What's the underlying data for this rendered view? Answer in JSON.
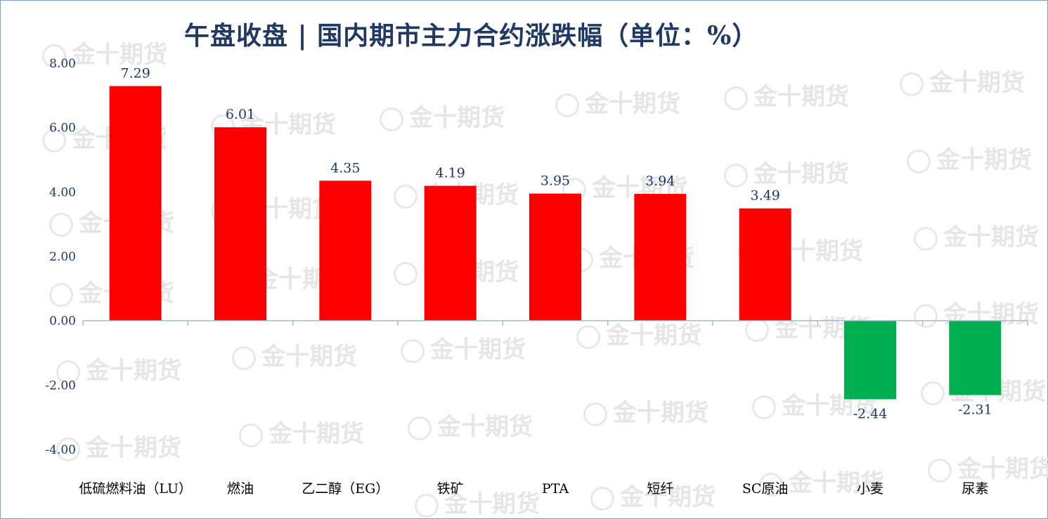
{
  "chart_data": {
    "type": "bar",
    "title": "午盘收盘 | 国内期市主力合约涨跌幅（单位：%）",
    "categories": [
      "低硫燃料油（LU）",
      "燃油",
      "乙二醇（EG）",
      "铁矿",
      "PTA",
      "短纤",
      "SC原油",
      "小麦",
      "尿素"
    ],
    "values": [
      7.29,
      6.01,
      4.35,
      4.19,
      3.95,
      3.94,
      3.49,
      -2.44,
      -2.31
    ],
    "value_labels": [
      "7.29",
      "6.01",
      "4.35",
      "4.19",
      "3.95",
      "3.94",
      "3.49",
      "-2.44",
      "-2.31"
    ],
    "ylim": [
      -4,
      8
    ],
    "yticks": [
      8,
      6,
      4,
      2,
      0,
      -2,
      -4
    ],
    "ytick_labels": [
      "8.00",
      "6.00",
      "4.00",
      "2.00",
      "0.00",
      "-2.00",
      "-4.00"
    ],
    "xlabel": "",
    "ylabel": "",
    "grid": false,
    "colors": {
      "positive": "#ff0000",
      "negative": "#00b050",
      "axis": "#a6b8d0",
      "text": "#1f3864"
    }
  },
  "watermark": {
    "text": "金十期货"
  }
}
